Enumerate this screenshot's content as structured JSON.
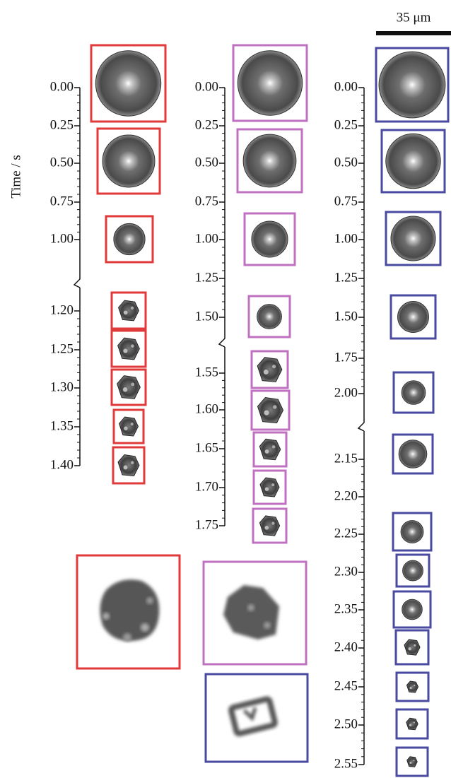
{
  "scale_bar": "35 μm",
  "axis_label": "Time / s",
  "panels": [
    {
      "ticks": [
        "0.00",
        "0.25",
        "0.50",
        "0.75",
        "1.00",
        "1.20",
        "1.25",
        "1.30",
        "1.35",
        "1.40"
      ]
    },
    {
      "ticks": [
        "0.00",
        "0.25",
        "0.50",
        "0.75",
        "1.00",
        "1.25",
        "1.50",
        "1.55",
        "1.60",
        "1.65",
        "1.70",
        "1.75"
      ]
    },
    {
      "ticks": [
        "0.00",
        "0.25",
        "0.50",
        "0.75",
        "1.00",
        "1.25",
        "1.50",
        "1.75",
        "2.00",
        "2.15",
        "2.20",
        "2.25",
        "2.30",
        "2.35",
        "2.40",
        "2.45",
        "2.50",
        "2.55"
      ]
    }
  ]
}
